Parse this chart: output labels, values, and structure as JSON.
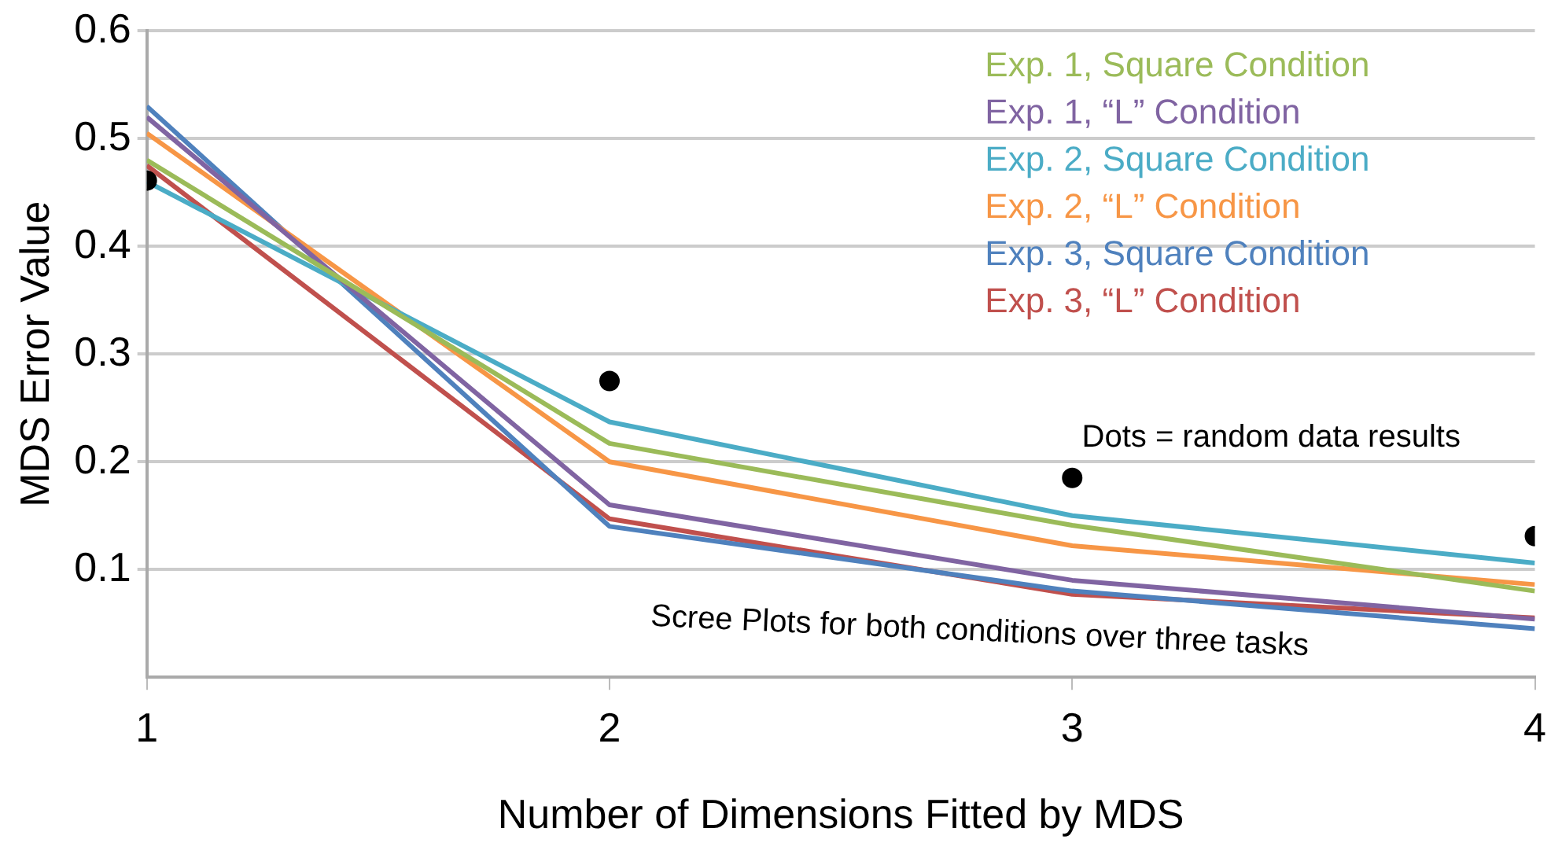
{
  "chart_data": {
    "type": "line",
    "xlabel": "Number of Dimensions Fitted by MDS",
    "ylabel": "MDS Error Value",
    "x": [
      1,
      2,
      3,
      4
    ],
    "xlim": [
      1,
      4
    ],
    "xticks": [
      1,
      2,
      3,
      4
    ],
    "ylim": [
      0,
      0.6
    ],
    "yticks": [
      0.1,
      0.2,
      0.3,
      0.4,
      0.5,
      0.6
    ],
    "grid": "y",
    "legend": "top right",
    "marker": "none",
    "line_style": "solid",
    "series": [
      {
        "name": "Exp. 1, Square Condition",
        "color": "#9bbb59",
        "values": [
          0.48,
          0.217,
          0.141,
          0.08
        ]
      },
      {
        "name": "Exp. 1, “L” Condition",
        "color": "#8064a2",
        "values": [
          0.52,
          0.16,
          0.09,
          0.054
        ]
      },
      {
        "name": "Exp. 2, Square Condition",
        "color": "#4bacc6",
        "values": [
          0.46,
          0.237,
          0.15,
          0.106
        ]
      },
      {
        "name": "Exp. 2, “L” Condition",
        "color": "#f79646",
        "values": [
          0.505,
          0.2,
          0.122,
          0.086
        ]
      },
      {
        "name": "Exp. 3, Square Condition",
        "color": "#4f81bd",
        "values": [
          0.53,
          0.14,
          0.08,
          0.045
        ]
      },
      {
        "name": "Exp. 3, “L” Condition",
        "color": "#c0504d",
        "values": [
          0.475,
          0.147,
          0.077,
          0.055
        ]
      },
      {
        "type": "scatter",
        "color": "#000000",
        "marker": "circle",
        "values": [
          0.461,
          0.275,
          0.185,
          0.131
        ]
      }
    ],
    "annotations": [
      "Dots = random data results",
      "Scree Plots for both conditions over three tasks"
    ]
  }
}
